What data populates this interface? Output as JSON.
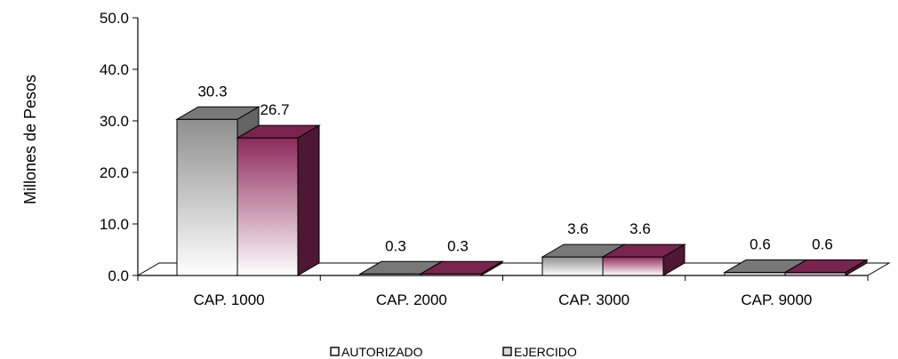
{
  "chart_data": {
    "type": "bar",
    "ylabel": "Millones de Pesos",
    "xlabel": "",
    "ylim": [
      0,
      50
    ],
    "yticks": [
      0,
      10,
      20,
      30,
      40,
      50
    ],
    "ytick_labels": [
      "0.0",
      "10.0",
      "20.0",
      "30.0",
      "40.0",
      "50.0"
    ],
    "categories": [
      "CAP. 1000",
      "CAP. 2000",
      "CAP. 3000",
      "CAP. 9000"
    ],
    "series": [
      {
        "name": "AUTORIZADO",
        "values": [
          30.3,
          0.3,
          3.6,
          0.6
        ],
        "labels": [
          "30.3",
          "0.3",
          "3.6",
          "0.6"
        ],
        "color": "#a6a6a6"
      },
      {
        "name": "EJERCIDO",
        "values": [
          26.7,
          0.3,
          3.6,
          0.6
        ],
        "labels": [
          "26.7",
          "0.3",
          "3.6",
          "0.6"
        ],
        "color": "#8e2a5c"
      }
    ],
    "legend_position": "bottom",
    "grid": false,
    "style": "3d"
  }
}
